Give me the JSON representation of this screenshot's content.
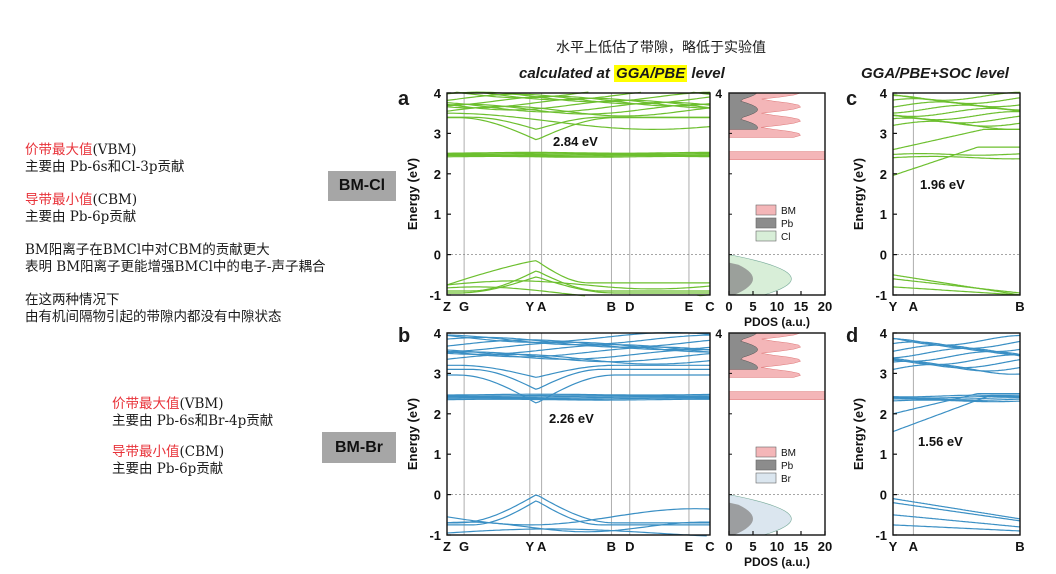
{
  "top_note": "水平上低估了带隙，略低于实验值",
  "header_left_prefix": "calculated at ",
  "header_left_highlight": "GGA/PBE",
  "header_left_suffix": " level",
  "header_right": "GGA/PBE+SOC level",
  "left_notes": {
    "vbm_title_cn": "价带最大值",
    "vbm_title_en": "(VBM)",
    "vbm_desc": "主要由 Pb-6s和Cl-3p贡献",
    "cbm_title_cn": "导带最小值",
    "cbm_title_en": "(CBM)",
    "cbm_desc": "主要由 Pb-6p贡献",
    "para1_line1": "BM阳离子在BMCl中对CBM的贡献更大",
    "para1_line2": "表明 BM阳离子更能增强BMCl中的电子-声子耦合",
    "para2_line1": "在这两种情况下",
    "para2_line2": "由有机间隔物引起的带隙内都没有中隙状态"
  },
  "lower_notes": {
    "vbm_title_cn": "价带最大值",
    "vbm_title_en": "(VBM)",
    "vbm_desc": "主要由 Pb-6s和Br-4p贡献",
    "cbm_title_cn": "导带最小值",
    "cbm_title_en": "(CBM)",
    "cbm_desc": "主要由 Pb-6p贡献"
  },
  "tags": {
    "top": "BM-Cl",
    "bottom": "BM-Br"
  },
  "colors": {
    "cl_bands": "#6cbf2e",
    "br_bands": "#3a8fc4",
    "bm_fill": "#f4b6b8",
    "pb_fill": "#8c8c8c",
    "cl_fill": "#d8eed8",
    "br_fill": "#dbe6ef",
    "tag_bg": "#a6a6a6",
    "highlight": "#ffff00",
    "red_text": "#e8333a"
  },
  "chart_data": [
    {
      "panel": "a",
      "type": "line",
      "ylabel": "Energy (eV)",
      "ylim": [
        -1,
        4
      ],
      "yticks": [
        "-1",
        "0",
        "1",
        "2",
        "3",
        "4"
      ],
      "kpoints": [
        "Z",
        "G",
        "Y",
        "A",
        "B",
        "D",
        "E",
        "C"
      ],
      "annotation": "2.84 eV"
    },
    {
      "panel": "a-pdos",
      "type": "area",
      "xlabel": "PDOS (a.u.)",
      "xlim": [
        0,
        20
      ],
      "xticks": [
        "0",
        "5",
        "10",
        "15",
        "20"
      ],
      "legend": [
        "BM",
        "Pb",
        "Cl"
      ]
    },
    {
      "panel": "c",
      "type": "line",
      "ylabel": "Energy (eV)",
      "ylim": [
        -1,
        4
      ],
      "yticks": [
        "-1",
        "0",
        "1",
        "2",
        "3",
        "4"
      ],
      "kpoints": [
        "Y",
        "A",
        "B"
      ],
      "annotation": "1.96 eV"
    },
    {
      "panel": "b",
      "type": "line",
      "ylabel": "Energy (eV)",
      "ylim": [
        -1,
        4
      ],
      "yticks": [
        "-1",
        "0",
        "1",
        "2",
        "3",
        "4"
      ],
      "kpoints": [
        "Z",
        "G",
        "Y",
        "A",
        "B",
        "D",
        "E",
        "C"
      ],
      "annotation": "2.26 eV"
    },
    {
      "panel": "b-pdos",
      "type": "area",
      "xlabel": "PDOS (a.u.)",
      "xlim": [
        0,
        20
      ],
      "xticks": [
        "0",
        "5",
        "10",
        "15",
        "20"
      ],
      "legend": [
        "BM",
        "Pb",
        "Br"
      ]
    },
    {
      "panel": "d",
      "type": "line",
      "ylabel": "Energy (eV)",
      "ylim": [
        -1,
        4
      ],
      "yticks": [
        "-1",
        "0",
        "1",
        "2",
        "3",
        "4"
      ],
      "kpoints": [
        "Y",
        "A",
        "B"
      ],
      "annotation": "1.56 eV"
    }
  ]
}
